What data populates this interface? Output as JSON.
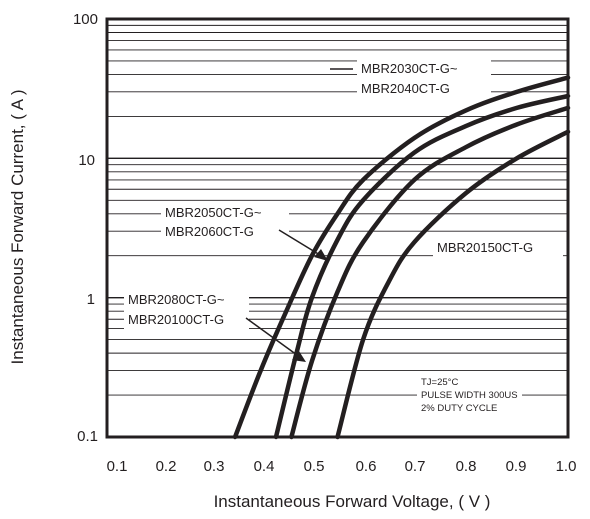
{
  "chart_data": {
    "type": "line",
    "title": "",
    "xlabel": "Instantaneous Forward Voltage, ( V )",
    "ylabel": "Instantaneous Forward Current, ( A )",
    "x_ticks": [
      "0.1",
      "0.2",
      "0.3",
      "0.4",
      "0.5",
      "0.6",
      "0.7",
      "0.8",
      "0.9",
      "1.0"
    ],
    "y_ticks": [
      "0.1",
      "1",
      "10",
      "100"
    ],
    "xlim": [
      0.1,
      1.0
    ],
    "ylim": [
      0.1,
      100
    ],
    "y_scale": "log",
    "grid": true,
    "series": [
      {
        "name": "MBR2030CT-G~ MBR2040CT-G",
        "x": [
          0.35,
          0.4,
          0.45,
          0.5,
          0.55,
          0.6,
          0.7,
          0.8,
          0.9,
          1.0
        ],
        "y": [
          0.1,
          0.3,
          0.8,
          2.0,
          4.0,
          7.0,
          14.0,
          22.0,
          30.0,
          38.0
        ]
      },
      {
        "name": "MBR2050CT-G~ MBR2060CT-G",
        "x": [
          0.43,
          0.47,
          0.5,
          0.55,
          0.6,
          0.7,
          0.8,
          0.9,
          1.0
        ],
        "y": [
          0.1,
          0.4,
          1.0,
          2.6,
          5.0,
          11.0,
          17.0,
          23.0,
          28.0
        ]
      },
      {
        "name": "MBR2080CT-G~ MBR20100CT-G",
        "x": [
          0.46,
          0.5,
          0.55,
          0.6,
          0.7,
          0.8,
          0.9,
          1.0
        ],
        "y": [
          0.1,
          0.35,
          1.1,
          2.5,
          7.0,
          12.0,
          17.5,
          23.0
        ]
      },
      {
        "name": "MBR20150CT-G",
        "x": [
          0.55,
          0.6,
          0.65,
          0.7,
          0.8,
          0.9,
          1.0
        ],
        "y": [
          0.1,
          0.5,
          1.3,
          2.5,
          5.6,
          10.0,
          15.5
        ]
      }
    ],
    "labels": {
      "s1a": "MBR2030CT-G~",
      "s1b": "MBR2040CT-G",
      "s2a": "MBR2050CT-G~",
      "s2b": "MBR2060CT-G",
      "s3a": "MBR2080CT-G~",
      "s3b": "MBR20100CT-G",
      "s4": "MBR20150CT-G"
    },
    "annotations": [
      "TJ=25°C",
      "PULSE WIDTH 300US",
      "2% DUTY CYCLE"
    ]
  }
}
